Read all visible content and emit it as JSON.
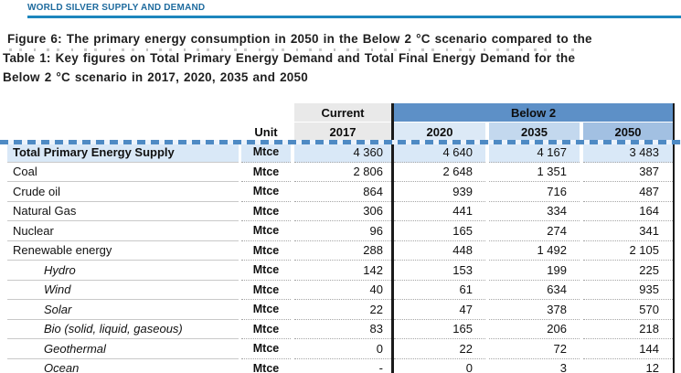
{
  "header": {
    "title": "WORLD SILVER SUPPLY AND DEMAND"
  },
  "captions": {
    "figure": "Figure 6: The primary energy consumption in 2050 in the Below 2 °C scenario compared to the",
    "table_line1": "Table 1: Key figures on Total Primary Energy Demand and Total Final Energy Demand for the",
    "table_line2": "Below 2 °C scenario in 2017, 2020, 2035 and 2050"
  },
  "table": {
    "group_headers": {
      "current": "Current",
      "below2": "Below 2"
    },
    "unit_header": "Unit",
    "years": [
      "2017",
      "2020",
      "2035",
      "2050"
    ],
    "rows": [
      {
        "label": "Total Primary Energy Supply",
        "unit": "Mtce",
        "values": [
          "4 360",
          "4 640",
          "4 167",
          "3 483"
        ],
        "style": "total"
      },
      {
        "label": "Coal",
        "unit": "Mtce",
        "values": [
          "2 806",
          "2 648",
          "1 351",
          "387"
        ],
        "style": ""
      },
      {
        "label": "Crude oil",
        "unit": "Mtce",
        "values": [
          "864",
          "939",
          "716",
          "487"
        ],
        "style": ""
      },
      {
        "label": "Natural Gas",
        "unit": "Mtce",
        "values": [
          "306",
          "441",
          "334",
          "164"
        ],
        "style": ""
      },
      {
        "label": "Nuclear",
        "unit": "Mtce",
        "values": [
          "96",
          "165",
          "274",
          "341"
        ],
        "style": ""
      },
      {
        "label": "Renewable energy",
        "unit": "Mtce",
        "values": [
          "288",
          "448",
          "1 492",
          "2 105"
        ],
        "style": ""
      },
      {
        "label": "Hydro",
        "unit": "Mtce",
        "values": [
          "142",
          "153",
          "199",
          "225"
        ],
        "style": "sub"
      },
      {
        "label": "Wind",
        "unit": "Mtce",
        "values": [
          "40",
          "61",
          "634",
          "935"
        ],
        "style": "sub"
      },
      {
        "label": "Solar",
        "unit": "Mtce",
        "values": [
          "22",
          "47",
          "378",
          "570"
        ],
        "style": "sub"
      },
      {
        "label": "Bio (solid, liquid, gaseous)",
        "unit": "Mtce",
        "values": [
          "83",
          "165",
          "206",
          "218"
        ],
        "style": "sub"
      },
      {
        "label": "Geothermal",
        "unit": "Mtce",
        "values": [
          "0",
          "22",
          "72",
          "144"
        ],
        "style": "sub"
      },
      {
        "label": "Ocean",
        "unit": "Mtce",
        "values": [
          "-",
          "0",
          "3",
          "12"
        ],
        "style": "sub"
      }
    ],
    "colors": {
      "header_title": "#1e6b9e",
      "header_rule": "#1d86bd",
      "below2_header": "#5d90c7",
      "current_header": "#e9e9e9",
      "year_2020": "#dce9f6",
      "year_2035": "#c3d8ee",
      "year_2050": "#a2c0e2",
      "total_row": "#d9e8f7",
      "page_break_dash": "#4e8ac4"
    }
  }
}
